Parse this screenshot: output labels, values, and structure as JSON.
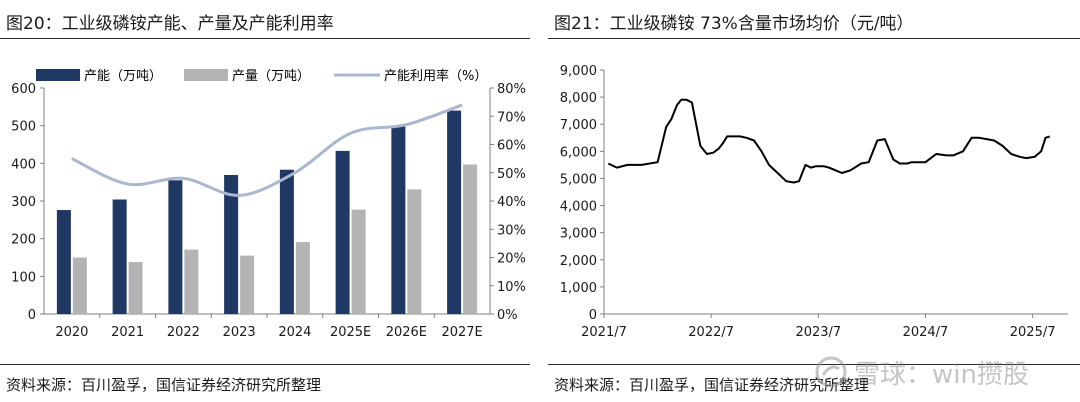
{
  "left_panel": {
    "title": "图20：工业级磷铵产能、产量及产能利用率",
    "source": "资料来源：百川盈孚，国信证券经济研究所整理"
  },
  "right_panel": {
    "title": "图21：工业级磷铵 73%含量市场均价（元/吨）",
    "source": "资料来源：百川盈孚，国信证券经济研究所整理"
  },
  "watermark": {
    "text": "雪球：win攒股"
  },
  "colors": {
    "capacity": "#1f3864",
    "output": "#b3b3b3",
    "utilization": "#a9b8cf",
    "price_line": "#000000",
    "axis": "#7f7f7f"
  },
  "chart_data": [
    {
      "type": "bar",
      "title": "工业级磷铵产能、产量及产能利用率",
      "categories": [
        "2020",
        "2021",
        "2022",
        "2023",
        "2024",
        "2025E",
        "2026E",
        "2027E"
      ],
      "series": [
        {
          "name": "产能（万吨）",
          "kind": "bar",
          "axis": "left",
          "values": [
            276,
            304,
            355,
            369,
            383,
            433,
            500,
            540
          ]
        },
        {
          "name": "产量（万吨）",
          "kind": "bar",
          "axis": "left",
          "values": [
            150,
            138,
            171,
            155,
            191,
            277,
            331,
            397
          ]
        },
        {
          "name": "产能利用率（%）",
          "kind": "line",
          "axis": "right",
          "values": [
            55,
            46,
            48,
            42,
            50,
            64,
            67,
            74
          ]
        }
      ],
      "y_left": {
        "min": 0,
        "max": 600,
        "ticks": [
          "0",
          "100",
          "200",
          "300",
          "400",
          "500",
          "600"
        ]
      },
      "y_right": {
        "min": 0,
        "max": 80,
        "ticks": [
          "0%",
          "10%",
          "20%",
          "30%",
          "40%",
          "50%",
          "60%",
          "70%",
          "80%"
        ]
      },
      "legend_position": "top",
      "grid": false
    },
    {
      "type": "line",
      "title": "工业级磷铵 73%含量市场均价（元/吨）",
      "series": [
        {
          "name": "工业级磷铵 73%含量市场均价",
          "x": [
            2021.54,
            2021.62,
            2021.72,
            2021.78,
            2021.85,
            2022.0,
            2022.08,
            2022.13,
            2022.18,
            2022.22,
            2022.27,
            2022.32,
            2022.4,
            2022.46,
            2022.52,
            2022.57,
            2022.61,
            2022.65,
            2022.7,
            2022.77,
            2022.83,
            2022.9,
            2022.97,
            2023.04,
            2023.12,
            2023.2,
            2023.27,
            2023.32,
            2023.38,
            2023.43,
            2023.48,
            2023.55,
            2023.6,
            2023.66,
            2023.72,
            2023.8,
            2023.9,
            2023.97,
            2024.05,
            2024.12,
            2024.2,
            2024.26,
            2024.33,
            2024.37,
            2024.42,
            2024.5,
            2024.6,
            2024.7,
            2024.76,
            2024.85,
            2024.93,
            2025.0,
            2025.07,
            2025.14,
            2025.22,
            2025.3,
            2025.38,
            2025.44,
            2025.52,
            2025.58,
            2025.62,
            2025.66
          ],
          "values": [
            5550,
            5400,
            5500,
            5500,
            5500,
            5600,
            6900,
            7200,
            7700,
            7900,
            7900,
            7800,
            6200,
            5900,
            5950,
            6100,
            6300,
            6550,
            6550,
            6550,
            6500,
            6400,
            6000,
            5500,
            5200,
            4900,
            4850,
            4900,
            5500,
            5400,
            5450,
            5450,
            5400,
            5300,
            5200,
            5300,
            5550,
            5600,
            6400,
            6450,
            5700,
            5550,
            5550,
            5600,
            5600,
            5600,
            5900,
            5850,
            5850,
            6000,
            6500,
            6500,
            6450,
            6400,
            6200,
            5900,
            5800,
            5750,
            5800,
            6000,
            6500,
            6550
          ]
        }
      ],
      "x_ticks": [
        "2021/7",
        "2022/7",
        "2023/7",
        "2024/7",
        "2025/7"
      ],
      "x_range": [
        2021.5,
        2025.83
      ],
      "y_range": [
        0,
        9000
      ],
      "y_ticks": [
        "0",
        "1,000",
        "2,000",
        "3,000",
        "4,000",
        "5,000",
        "6,000",
        "7,000",
        "8,000",
        "9,000"
      ],
      "grid": false
    }
  ]
}
